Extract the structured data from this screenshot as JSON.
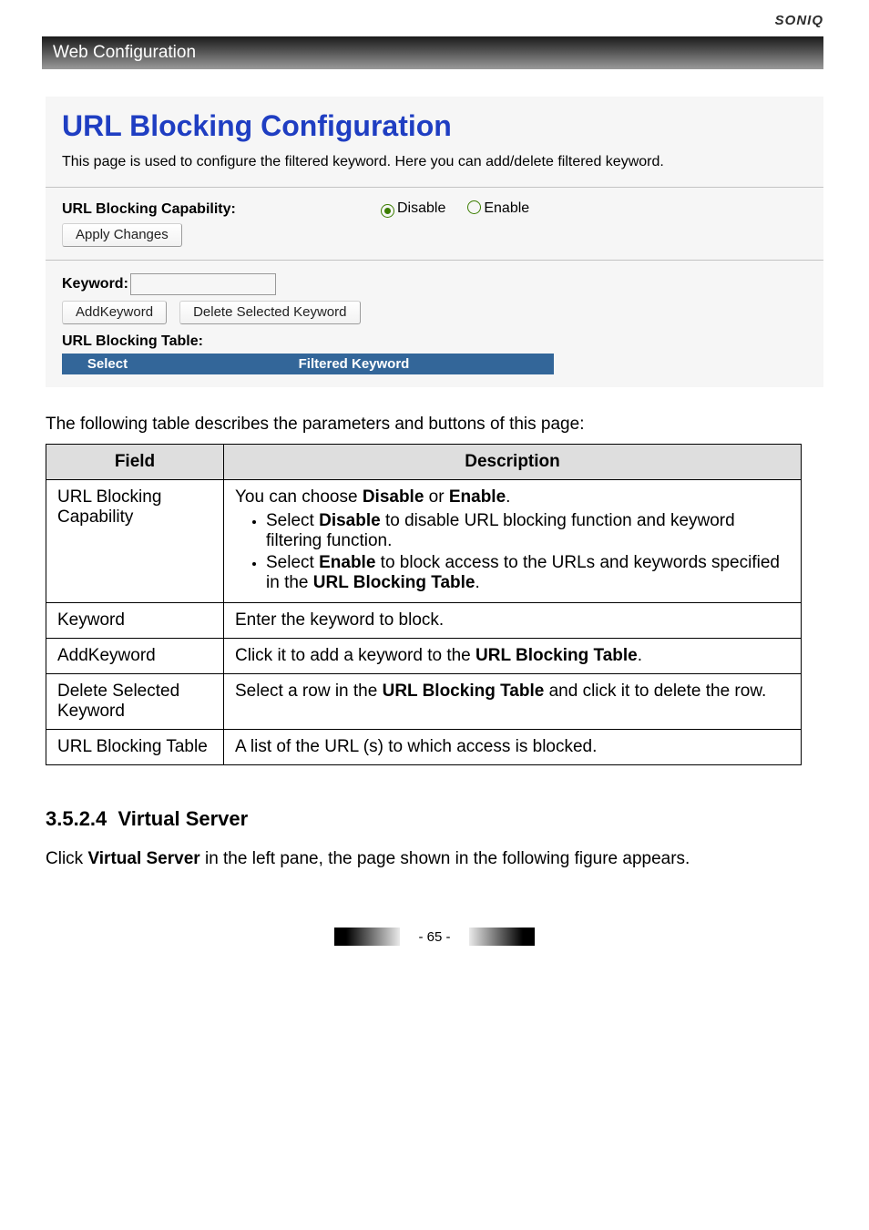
{
  "brand": "SONIQ",
  "chapter": "Web Configuration",
  "config": {
    "title": "URL Blocking Configuration",
    "desc": "This page is used to configure the filtered keyword. Here you can add/delete filtered keyword.",
    "cap_label": "URL Blocking Capability:",
    "radio_disable": "Disable",
    "radio_enable": "Enable",
    "radio_selected": "disable",
    "apply_btn": "Apply Changes",
    "kw_label": "Keyword:",
    "add_btn": "AddKeyword",
    "del_btn": "Delete Selected Keyword",
    "tbl_heading": "URL Blocking Table:",
    "th_select": "Select",
    "th_filtered": "Filtered Keyword"
  },
  "intro": "The following table describes the parameters and buttons of this page:",
  "param_table": {
    "th_field": "Field",
    "th_desc": "Description",
    "rows": {
      "r0": {
        "field": "URL Blocking Capability",
        "d0": "You can choose ",
        "d0b1": "Disable",
        "d0m": " or ",
        "d0b2": "Enable",
        "d0e": ".",
        "li0a": "Select ",
        "li0b": "Disable",
        "li0c": " to disable URL blocking function and keyword filtering function.",
        "li1a": "Select ",
        "li1b": "Enable",
        "li1c": " to block access to the URLs and keywords specified in the ",
        "li1d": "URL Blocking Table",
        "li1e": "."
      },
      "r1": {
        "field": "Keyword",
        "desc": "Enter the keyword to block."
      },
      "r2": {
        "field": "AddKeyword",
        "d0": "Click it to add a keyword to the ",
        "d1": "URL Blocking Table",
        "d2": "."
      },
      "r3": {
        "field": "Delete Selected Keyword",
        "d0": "Select a row in the ",
        "d1": "URL Blocking Table",
        "d2": " and click it to delete the row."
      },
      "r4": {
        "field": "URL Blocking Table",
        "desc": "A list of the URL (s) to which access is blocked."
      }
    }
  },
  "sub": {
    "num": "3.5.2.4",
    "title": "Virtual Server"
  },
  "para": {
    "a": "Click ",
    "b": "Virtual Server",
    "c": " in the left pane, the page shown in the following figure appears."
  },
  "pagenum": "- 65 -",
  "colors": {
    "title_blue": "#1f3ec2",
    "table_header": "#336699",
    "radio_green": "#3b7d00",
    "grey_bg": "#f6f6f6",
    "th_grey": "#dedede"
  }
}
